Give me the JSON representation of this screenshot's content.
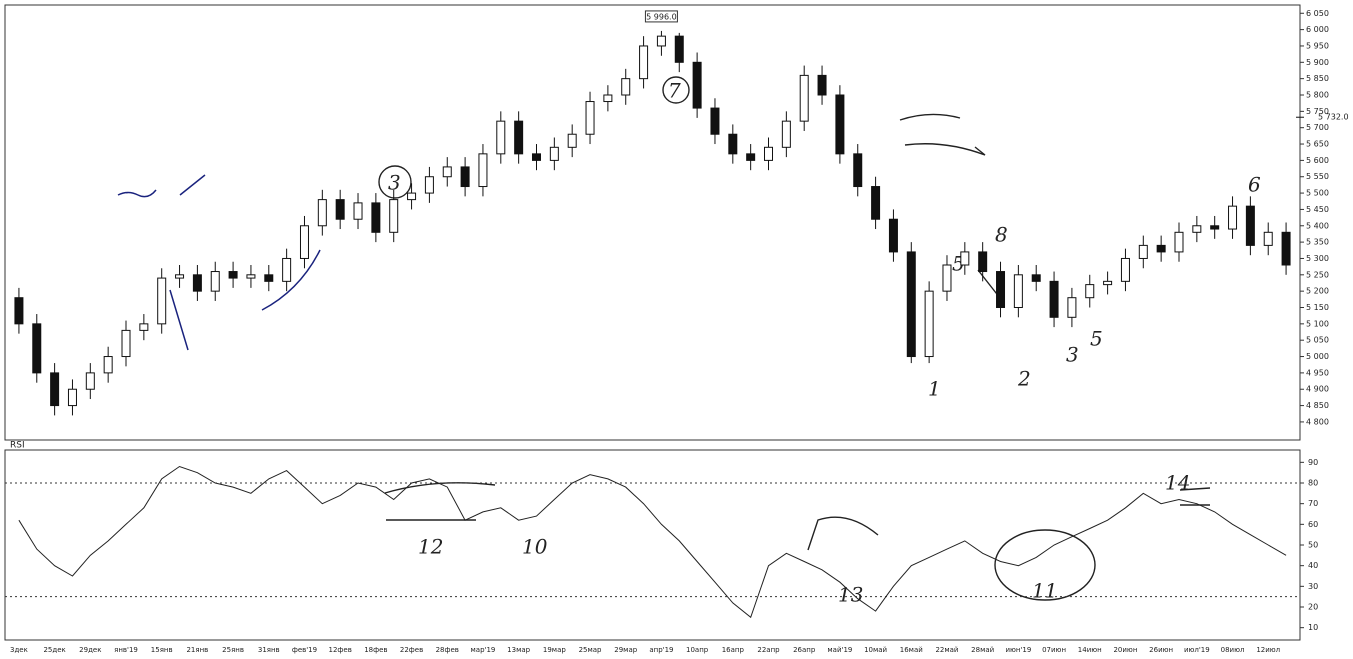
{
  "chart_data": [
    {
      "type": "candlestick",
      "categories": [
        "3дек",
        null,
        "25дек",
        null,
        "29дек",
        null,
        "янв'19",
        null,
        "15янв",
        null,
        "21янв",
        null,
        "25янв",
        null,
        "31янв",
        null,
        "фев'19",
        null,
        "12фев",
        null,
        "18фев",
        null,
        "22фев",
        null,
        "28фев",
        null,
        "мар'19",
        null,
        "13мар",
        null,
        "19мар",
        null,
        "25мар",
        null,
        "29мар",
        null,
        "апр'19",
        null,
        "10апр",
        null,
        "16апр",
        null,
        "22апр",
        null,
        "26апр",
        null,
        "май'19",
        null,
        "10май",
        null,
        "16май",
        null,
        "22май",
        null,
        "28май",
        null,
        "июн'19",
        null,
        "07июн",
        null,
        "14июн",
        null,
        "20июн",
        null,
        "26июн",
        null,
        "июл'19",
        null,
        "08июл",
        null,
        "12июл",
        null
      ],
      "open": [
        5180,
        5100,
        4950,
        4850,
        4900,
        4950,
        5000,
        5080,
        5100,
        5240,
        5250,
        5200,
        5260,
        5240,
        5250,
        5230,
        5300,
        5400,
        5480,
        5420,
        5470,
        5380,
        5480,
        5500,
        5550,
        5580,
        5520,
        5620,
        5720,
        5620,
        5600,
        5640,
        5680,
        5780,
        5800,
        5850,
        5950,
        5980,
        5900,
        5760,
        5680,
        5620,
        5600,
        5640,
        5720,
        5860,
        5800,
        5620,
        5520,
        5420,
        5320,
        5000,
        5200,
        5280,
        5320,
        5260,
        5150,
        5250,
        5230,
        5120,
        5180,
        5220,
        5230,
        5300,
        5340,
        5320,
        5380,
        5400,
        5390,
        5460,
        5340,
        5380
      ],
      "high": [
        5210,
        5130,
        4980,
        4930,
        4980,
        5030,
        5110,
        5130,
        5270,
        5280,
        5280,
        5290,
        5290,
        5280,
        5280,
        5330,
        5430,
        5510,
        5510,
        5500,
        5500,
        5510,
        5530,
        5580,
        5610,
        5610,
        5650,
        5750,
        5750,
        5650,
        5670,
        5710,
        5810,
        5830,
        5880,
        5980,
        5996,
        5990,
        5930,
        5790,
        5710,
        5650,
        5670,
        5750,
        5890,
        5890,
        5830,
        5650,
        5550,
        5450,
        5350,
        5230,
        5310,
        5350,
        5350,
        5290,
        5280,
        5280,
        5260,
        5210,
        5250,
        5260,
        5330,
        5370,
        5370,
        5410,
        5430,
        5430,
        5490,
        5490,
        5410,
        5410
      ],
      "low": [
        5070,
        4920,
        4820,
        4820,
        4870,
        4920,
        4970,
        5050,
        5070,
        5210,
        5170,
        5170,
        5210,
        5210,
        5200,
        5200,
        5270,
        5370,
        5390,
        5390,
        5350,
        5350,
        5450,
        5470,
        5520,
        5490,
        5490,
        5590,
        5590,
        5570,
        5570,
        5610,
        5650,
        5750,
        5770,
        5820,
        5920,
        5870,
        5730,
        5650,
        5590,
        5570,
        5570,
        5610,
        5690,
        5770,
        5590,
        5490,
        5390,
        5290,
        4980,
        4980,
        5170,
        5250,
        5230,
        5120,
        5120,
        5200,
        5090,
        5090,
        5150,
        5190,
        5200,
        5270,
        5290,
        5290,
        5350,
        5360,
        5360,
        5310,
        5310,
        5250
      ],
      "close": [
        5100,
        4950,
        4850,
        4900,
        4950,
        5000,
        5080,
        5100,
        5240,
        5250,
        5200,
        5260,
        5240,
        5250,
        5230,
        5300,
        5400,
        5480,
        5420,
        5470,
        5380,
        5480,
        5500,
        5550,
        5580,
        5520,
        5620,
        5720,
        5620,
        5600,
        5640,
        5680,
        5780,
        5800,
        5850,
        5950,
        5980,
        5900,
        5760,
        5680,
        5620,
        5600,
        5640,
        5720,
        5860,
        5800,
        5620,
        5520,
        5420,
        5320,
        5000,
        5200,
        5280,
        5320,
        5260,
        5150,
        5250,
        5230,
        5120,
        5180,
        5220,
        5230,
        5300,
        5340,
        5320,
        5380,
        5400,
        5390,
        5460,
        5340,
        5380,
        5280
      ],
      "up_color": "#ffffff",
      "down_color": "#111111",
      "ylim": [
        4760,
        6060
      ],
      "yticks": [
        {
          "value": 4800,
          "label": "4 800"
        },
        {
          "value": 4850,
          "label": "4 850"
        },
        {
          "value": 4900,
          "label": "4 900"
        },
        {
          "value": 4950,
          "label": "4 950"
        },
        {
          "value": 5000,
          "label": "5 000"
        },
        {
          "value": 5050,
          "label": "5 050"
        },
        {
          "value": 5100,
          "label": "5 100"
        },
        {
          "value": 5150,
          "label": "5 150"
        },
        {
          "value": 5200,
          "label": "5 200"
        },
        {
          "value": 5250,
          "label": "5 250"
        },
        {
          "value": 5300,
          "label": "5 300"
        },
        {
          "value": 5350,
          "label": "5 350"
        },
        {
          "value": 5400,
          "label": "5 400"
        },
        {
          "value": 5450,
          "label": "5 450"
        },
        {
          "value": 5500,
          "label": "5 500"
        },
        {
          "value": 5550,
          "label": "5 550"
        },
        {
          "value": 5600,
          "label": "5 600"
        },
        {
          "value": 5650,
          "label": "5 650"
        },
        {
          "value": 5700,
          "label": "5 700"
        },
        {
          "value": 5750,
          "label": "5 750"
        },
        {
          "value": 5800,
          "label": "5 800"
        },
        {
          "value": 5850,
          "label": "5 850"
        },
        {
          "value": 5900,
          "label": "5 900"
        },
        {
          "value": 5950,
          "label": "5 950"
        },
        {
          "value": 6000,
          "label": "6 000"
        },
        {
          "value": 6050,
          "label": "6 050"
        }
      ],
      "peak_label": {
        "value": 5996,
        "label": "5 996.0"
      },
      "price_marker": {
        "value": 5732,
        "label": "5 732.0"
      },
      "annotations": [
        "7",
        "3",
        "6",
        "1",
        "2",
        "3",
        "5",
        "5",
        "8"
      ]
    },
    {
      "type": "line",
      "title": "RSI",
      "values": [
        62,
        48,
        40,
        35,
        45,
        52,
        60,
        68,
        82,
        88,
        85,
        80,
        78,
        75,
        82,
        86,
        78,
        70,
        74,
        80,
        78,
        72,
        80,
        82,
        78,
        62,
        66,
        68,
        62,
        64,
        72,
        80,
        84,
        82,
        78,
        70,
        60,
        52,
        42,
        32,
        22,
        15,
        40,
        46,
        42,
        38,
        32,
        24,
        18,
        30,
        40,
        44,
        48,
        52,
        46,
        42,
        40,
        44,
        50,
        54,
        58,
        62,
        68,
        75,
        70,
        72,
        70,
        66,
        60,
        55,
        50,
        45
      ],
      "color": "#222222",
      "ylim": [
        5,
        95
      ],
      "yticks": [
        10,
        20,
        30,
        40,
        50,
        60,
        70,
        80,
        90
      ],
      "levels": [
        80,
        25
      ],
      "annotations": [
        "12",
        "10",
        "13",
        "11",
        "14"
      ]
    }
  ]
}
